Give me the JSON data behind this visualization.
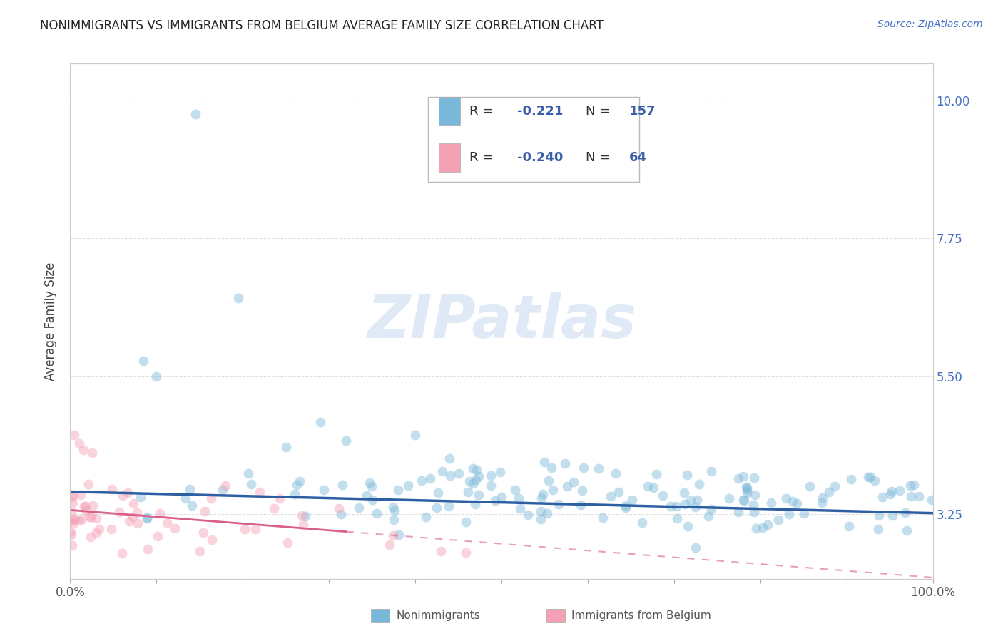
{
  "title": "NONIMMIGRANTS VS IMMIGRANTS FROM BELGIUM AVERAGE FAMILY SIZE CORRELATION CHART",
  "source": "Source: ZipAtlas.com",
  "ylabel": "Average Family Size",
  "xlim": [
    0,
    1.0
  ],
  "ylim": [
    2.2,
    10.6
  ],
  "yticks": [
    3.25,
    5.5,
    7.75,
    10.0
  ],
  "ytick_labels": [
    "3.25",
    "5.50",
    "7.75",
    "10.00"
  ],
  "xtick_positions": [
    0.0,
    0.1,
    0.2,
    0.3,
    0.4,
    0.5,
    0.6,
    0.7,
    0.8,
    0.9,
    1.0
  ],
  "legend_blue_R": "-0.221",
  "legend_blue_N": "157",
  "legend_pink_R": "-0.240",
  "legend_pink_N": "64",
  "blue_scatter_color": "#7ab8d9",
  "pink_scatter_color": "#f4a0b5",
  "blue_line_color": "#2e5fa3",
  "pink_line_color": "#d95f8a",
  "watermark_text": "ZIPatlas",
  "watermark_color": "#dce8f5",
  "title_fontsize": 12,
  "axis_label_color": "#4472c4",
  "nonimmigrants_label": "Nonimmigrants",
  "immigrants_label": "Immigrants from Belgium",
  "blue_trend_intercept": 3.62,
  "blue_trend_slope": -0.35,
  "pink_trend_intercept": 3.32,
  "pink_trend_slope": -1.1,
  "grid_color": "#cccccc",
  "background_color": "#ffffff",
  "scatter_alpha": 0.45,
  "scatter_size": 100
}
